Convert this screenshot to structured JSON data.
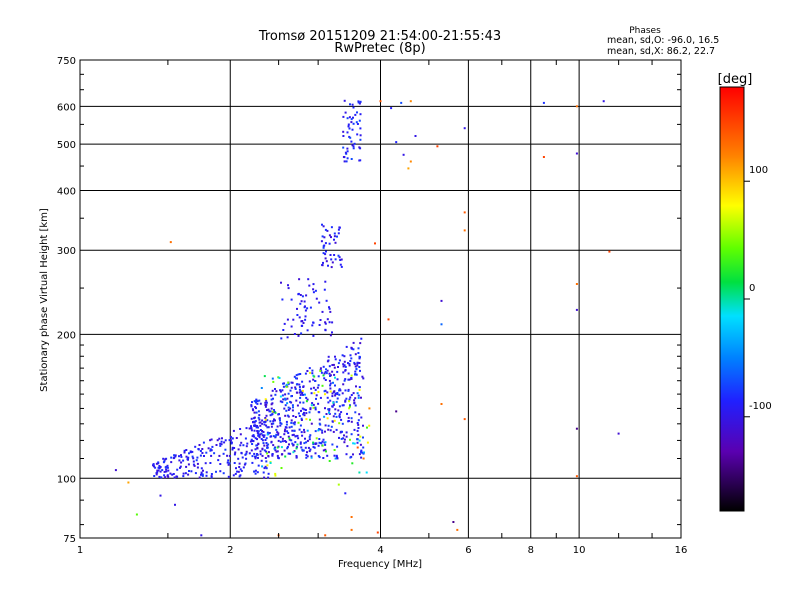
{
  "chart_data": {
    "type": "scatter",
    "title": "Tromsø 20151209 21:54:00-21:55:43",
    "subtitle": "RwPretec (8p)",
    "xlabel": "Frequency [MHz]",
    "ylabel": "Stationary phase Virtual Height [km]",
    "x_scale": "log",
    "y_scale": "log",
    "xlim": [
      1,
      16
    ],
    "ylim": [
      75,
      750
    ],
    "x_ticks": [
      1,
      2,
      4,
      6,
      8,
      10,
      16
    ],
    "y_ticks": [
      75,
      100,
      200,
      300,
      400,
      500,
      600,
      750
    ],
    "grid": true,
    "stats": {
      "title": "Phases",
      "line_o": "mean, sd,O: -96.0, 16.5",
      "line_x": "mean, sd,X: 86.2, 22.7"
    },
    "colorbar": {
      "label": "[deg]",
      "range": [
        -180,
        180
      ],
      "ticks": [
        100,
        0,
        -100
      ]
    },
    "regions": [
      {
        "name": "low-trace",
        "x": [
          1.4,
          2.4
        ],
        "y": [
          100,
          135
        ],
        "phase": [
          -110,
          -75
        ],
        "n": 240
      },
      {
        "name": "main-cloud",
        "x": [
          2.2,
          3.7
        ],
        "y": [
          110,
          200
        ],
        "phase": [
          -115,
          -70
        ],
        "n": 620
      },
      {
        "name": "main-cloud-edge",
        "x": [
          2.3,
          3.8
        ],
        "y": [
          100,
          170
        ],
        "phase": [
          -60,
          90
        ],
        "n": 90
      },
      {
        "name": "cloud-top",
        "x": [
          2.5,
          3.2
        ],
        "y": [
          195,
          265
        ],
        "phase": [
          -110,
          -80
        ],
        "n": 70
      },
      {
        "name": "f-layer-cluster",
        "x": [
          3.05,
          3.35
        ],
        "y": [
          275,
          340
        ],
        "phase": [
          -110,
          -75
        ],
        "n": 45
      },
      {
        "name": "high-cluster",
        "x": [
          3.35,
          3.65
        ],
        "y": [
          460,
          620
        ],
        "phase": [
          -105,
          -70
        ],
        "n": 55
      }
    ],
    "points": [
      {
        "x": 1.18,
        "y": 104,
        "phase": -110
      },
      {
        "x": 4.4,
        "y": 610,
        "phase": -70
      },
      {
        "x": 4.2,
        "y": 595,
        "phase": -90
      },
      {
        "x": 4.6,
        "y": 615,
        "phase": 120
      },
      {
        "x": 4.3,
        "y": 505,
        "phase": -85
      },
      {
        "x": 4.7,
        "y": 520,
        "phase": -100
      },
      {
        "x": 4.45,
        "y": 475,
        "phase": -100
      },
      {
        "x": 4.6,
        "y": 460,
        "phase": 120
      },
      {
        "x": 5.2,
        "y": 495,
        "phase": 150
      },
      {
        "x": 4.55,
        "y": 445,
        "phase": 110
      },
      {
        "x": 4.0,
        "y": 615,
        "phase": 140
      },
      {
        "x": 5.9,
        "y": 540,
        "phase": -100
      },
      {
        "x": 8.5,
        "y": 610,
        "phase": -80
      },
      {
        "x": 9.9,
        "y": 600,
        "phase": 130
      },
      {
        "x": 11.2,
        "y": 615,
        "phase": -100
      },
      {
        "x": 9.9,
        "y": 478,
        "phase": -110
      },
      {
        "x": 8.5,
        "y": 470,
        "phase": 150
      },
      {
        "x": 5.9,
        "y": 360,
        "phase": 140
      },
      {
        "x": 5.9,
        "y": 330,
        "phase": 130
      },
      {
        "x": 5.3,
        "y": 235,
        "phase": -110
      },
      {
        "x": 5.3,
        "y": 210,
        "phase": -60
      },
      {
        "x": 4.15,
        "y": 215,
        "phase": 150
      },
      {
        "x": 3.9,
        "y": 310,
        "phase": 150
      },
      {
        "x": 9.9,
        "y": 255,
        "phase": 130
      },
      {
        "x": 9.9,
        "y": 225,
        "phase": -110
      },
      {
        "x": 11.5,
        "y": 298,
        "phase": 150
      },
      {
        "x": 1.52,
        "y": 312,
        "phase": 130
      },
      {
        "x": 4.3,
        "y": 138,
        "phase": -140
      },
      {
        "x": 5.3,
        "y": 143,
        "phase": 130
      },
      {
        "x": 5.9,
        "y": 133,
        "phase": 140
      },
      {
        "x": 9.9,
        "y": 127,
        "phase": -140
      },
      {
        "x": 12.0,
        "y": 124,
        "phase": -110
      },
      {
        "x": 9.9,
        "y": 101,
        "phase": 140
      },
      {
        "x": 5.6,
        "y": 81,
        "phase": -140
      },
      {
        "x": 5.7,
        "y": 78,
        "phase": 130
      },
      {
        "x": 3.5,
        "y": 78,
        "phase": 130
      },
      {
        "x": 3.95,
        "y": 77,
        "phase": 150
      },
      {
        "x": 3.1,
        "y": 76,
        "phase": 140
      },
      {
        "x": 2.5,
        "y": 76,
        "phase": 140
      },
      {
        "x": 1.75,
        "y": 76,
        "phase": -100
      },
      {
        "x": 1.3,
        "y": 84,
        "phase": 40
      },
      {
        "x": 1.25,
        "y": 98,
        "phase": 110
      },
      {
        "x": 1.45,
        "y": 92,
        "phase": -100
      },
      {
        "x": 1.55,
        "y": 88,
        "phase": -100
      },
      {
        "x": 3.8,
        "y": 140,
        "phase": 120
      },
      {
        "x": 3.6,
        "y": 116,
        "phase": 140
      },
      {
        "x": 3.7,
        "y": 110,
        "phase": 130
      },
      {
        "x": 3.3,
        "y": 97,
        "phase": 60
      },
      {
        "x": 3.4,
        "y": 93,
        "phase": -90
      },
      {
        "x": 3.5,
        "y": 83,
        "phase": 130
      }
    ]
  }
}
